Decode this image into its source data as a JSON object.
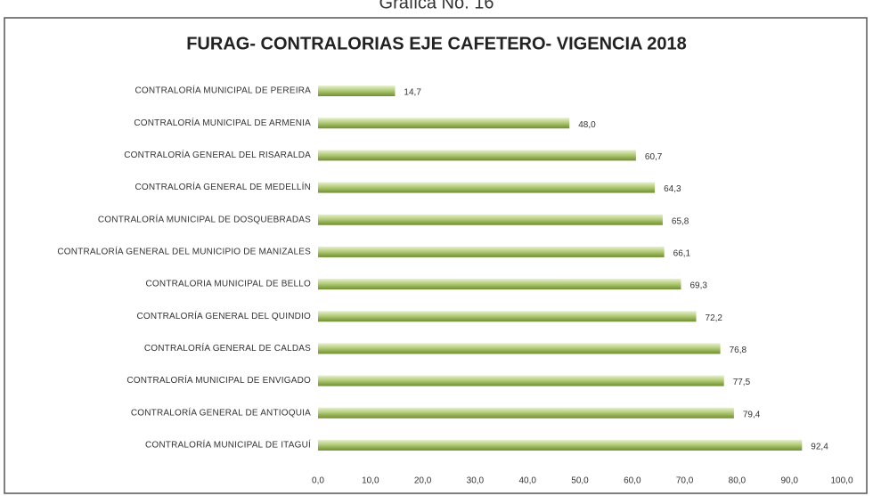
{
  "header": {
    "caption": "Gráfica No. 16"
  },
  "chart_data": {
    "type": "bar",
    "orientation": "horizontal",
    "title": "FURAG- CONTRALORIAS EJE CAFETERO- VIGENCIA 2018",
    "categories": [
      "CONTRALORÍA MUNICIPAL DE PEREIRA",
      "CONTRALORÍA MUNICIPAL DE ARMENIA",
      "CONTRALORÍA GENERAL DEL RISARALDA",
      "CONTRALORÍA GENERAL DE MEDELLÍN",
      "CONTRALORÍA MUNICIPAL DE DOSQUEBRADAS",
      "CONTRALORÍA GENERAL DEL MUNICIPIO DE MANIZALES",
      "CONTRALORIA MUNICIPAL DE BELLO",
      "CONTRALORÍA GENERAL DEL QUINDIO",
      "CONTRALORÍA GENERAL DE CALDAS",
      "CONTRALORÍA MUNICIPAL DE ENVIGADO",
      "CONTRALORÍA GENERAL DE ANTIOQUIA",
      "CONTRALORÍA MUNICIPAL DE ITAGUÍ"
    ],
    "values": [
      14.7,
      48.0,
      60.7,
      64.3,
      65.8,
      66.1,
      69.3,
      72.2,
      76.8,
      77.5,
      79.4,
      92.4
    ],
    "value_labels": [
      "14,7",
      "48,0",
      "60,7",
      "64,3",
      "65,8",
      "66,1",
      "69,3",
      "72,2",
      "76,8",
      "77,5",
      "79,4",
      "92,4"
    ],
    "color": "#6e8f2e",
    "xlim": [
      0,
      100
    ],
    "xticks": [
      {
        "value": 0,
        "label": "0,0"
      },
      {
        "value": 10,
        "label": "10,0"
      },
      {
        "value": 20,
        "label": "20,0"
      },
      {
        "value": 30,
        "label": "30,0"
      },
      {
        "value": 40,
        "label": "40,0"
      },
      {
        "value": 50,
        "label": "50,0"
      },
      {
        "value": 60,
        "label": "60,0"
      },
      {
        "value": 70,
        "label": "70,0"
      },
      {
        "value": 80,
        "label": "80,0"
      },
      {
        "value": 90,
        "label": "90,0"
      },
      {
        "value": 100,
        "label": "100,0"
      }
    ],
    "grid": false
  }
}
